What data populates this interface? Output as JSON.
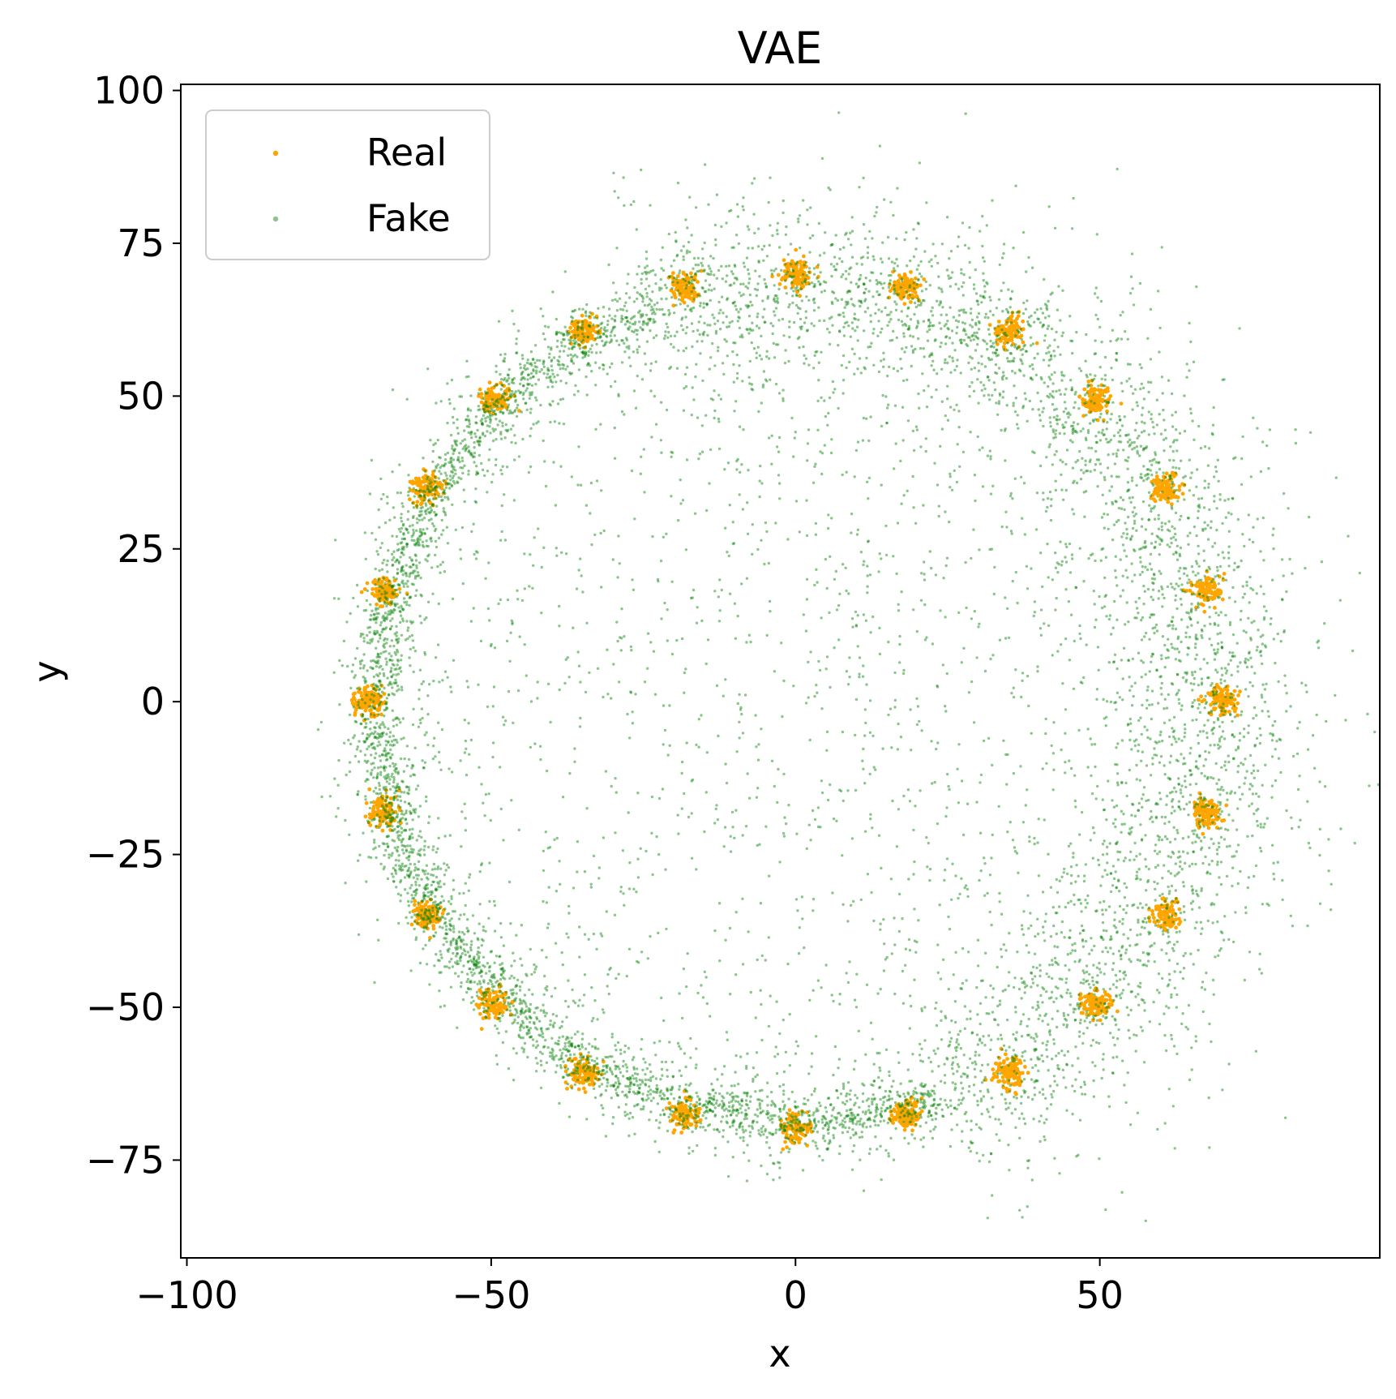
{
  "chart_data": {
    "type": "scatter",
    "title": "VAE",
    "xlabel": "x",
    "ylabel": "y",
    "xlim": [
      -101,
      96
    ],
    "ylim": [
      -91,
      101
    ],
    "xticks": [
      -100,
      -50,
      0,
      50
    ],
    "xtick_labels": [
      "−100",
      "−50",
      "0",
      "50"
    ],
    "yticks": [
      -75,
      -50,
      -25,
      0,
      25,
      50,
      75,
      100
    ],
    "ytick_labels": [
      "−75",
      "−50",
      "−25",
      "0",
      "25",
      "50",
      "75",
      "100"
    ],
    "grid": false,
    "legend_position": "top-left",
    "series": [
      {
        "name": "Real",
        "color": "#ffa500",
        "description_of_distribution": "24 Gaussian clusters on a ring",
        "ring_radius": 70,
        "cluster_count": 24,
        "cluster_std": 1.2,
        "points_per_cluster": 110,
        "cluster_centers": [
          [
            70,
            0
          ],
          [
            67.6,
            18.1
          ],
          [
            60.6,
            35
          ],
          [
            49.5,
            49.5
          ],
          [
            35,
            60.6
          ],
          [
            18.1,
            67.6
          ],
          [
            0,
            70
          ],
          [
            -18.1,
            67.6
          ],
          [
            -35,
            60.6
          ],
          [
            -49.5,
            49.5
          ],
          [
            -60.6,
            35
          ],
          [
            -67.6,
            18.1
          ],
          [
            -70,
            0
          ],
          [
            -67.6,
            -18.1
          ],
          [
            -60.6,
            -35
          ],
          [
            -49.5,
            -49.5
          ],
          [
            -35,
            -60.6
          ],
          [
            -18.1,
            -67.6
          ],
          [
            0,
            -70
          ],
          [
            18.1,
            -67.6
          ],
          [
            35,
            -60.6
          ],
          [
            49.5,
            -49.5
          ],
          [
            60.6,
            -35
          ],
          [
            67.6,
            -18.1
          ]
        ]
      },
      {
        "name": "Fake",
        "color": "#008000",
        "opacity": 0.45,
        "description_of_distribution": "VAE samples: dense thin arc on left/bottom of ring, diffuse scatter along right/top of ring and sparse interior",
        "ring_radius": 70,
        "point_count": 9000
      }
    ]
  }
}
